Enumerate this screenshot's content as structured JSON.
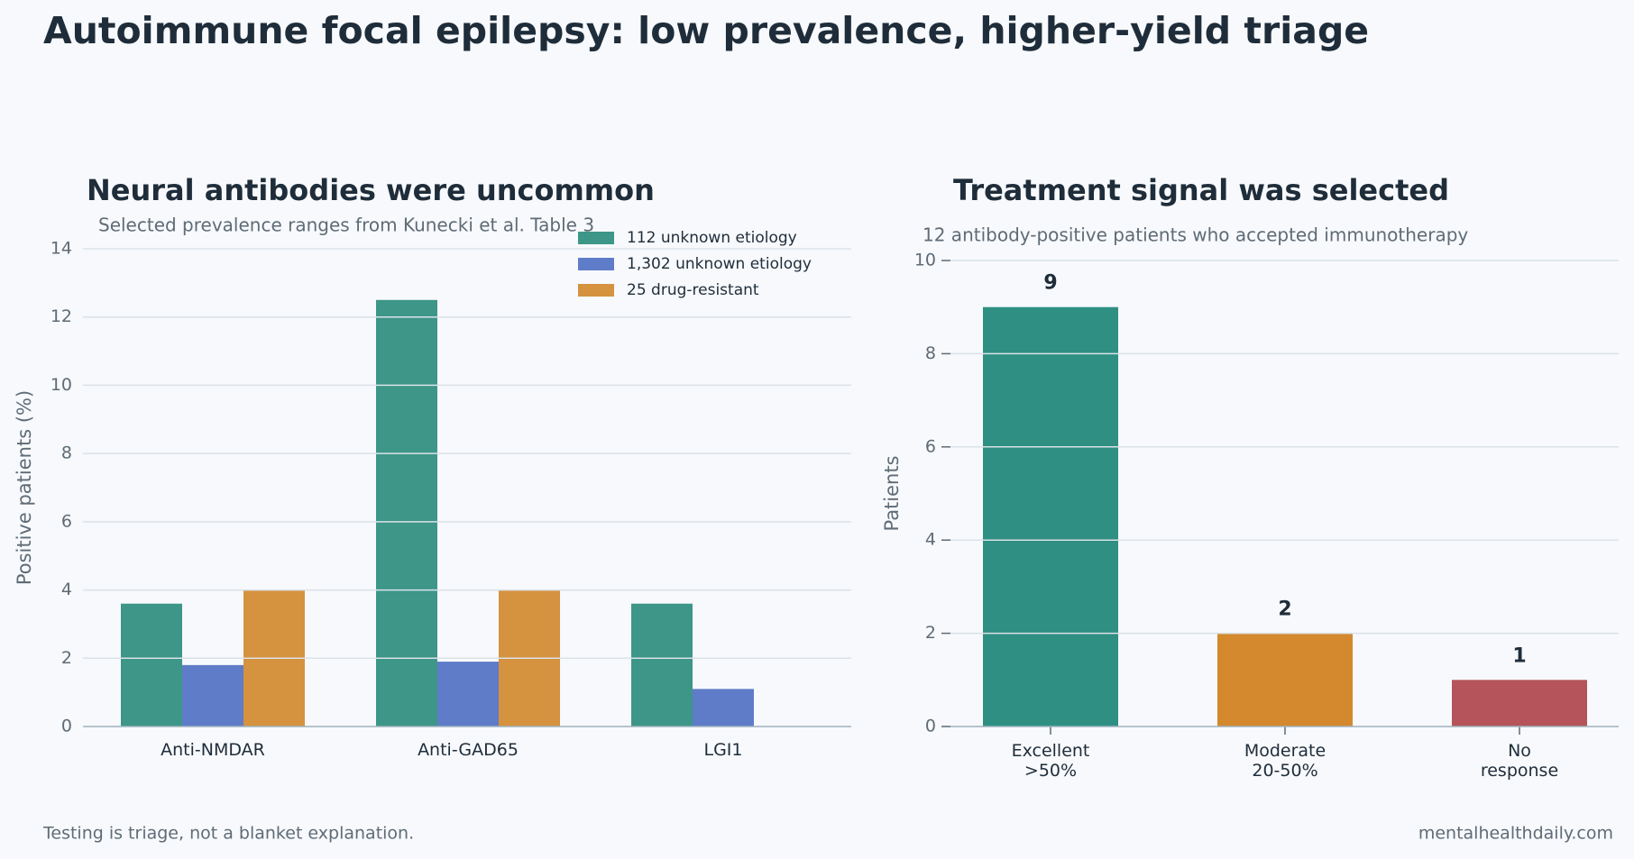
{
  "title": "Autoimmune focal epilepsy: low prevalence, higher-yield triage",
  "footer": {
    "left": "Testing is triage, not a blanket explanation.",
    "right": "mentalhealthdaily.com"
  },
  "chart_data": [
    {
      "type": "grouped_bar",
      "title": "Neural antibodies were uncommon",
      "subtitle": "Selected prevalence ranges from Kunecki et al. Table 3",
      "y_label": "Positive patients (%)",
      "categories": [
        "Anti-NMDAR",
        "Anti-GAD65",
        "LGI1"
      ],
      "series": [
        {
          "name": "112 unknown etiology",
          "color": "#3d9688",
          "values": [
            3.6,
            12.5,
            3.6
          ]
        },
        {
          "name": "1,302 unknown etiology",
          "color": "#5f7cc8",
          "values": [
            1.8,
            1.9,
            1.1
          ]
        },
        {
          "name": "25 drug-resistant",
          "color": "#d5923f",
          "values": [
            4.0,
            4.0,
            null
          ]
        }
      ],
      "ylim": [
        0,
        14
      ],
      "yticks": [
        0,
        2,
        4,
        6,
        8,
        10,
        12,
        14
      ],
      "grid": true,
      "legend": "upper right"
    },
    {
      "type": "bar",
      "title": "Treatment signal was selected",
      "subtitle": "12 antibody-positive patients who accepted immunotherapy",
      "y_label": "Patients",
      "categories": [
        "Excellent\n>50%",
        "Moderate\n20-50%",
        "No\nresponse"
      ],
      "values": [
        9,
        2,
        1
      ],
      "colors": [
        "#2e8f82",
        "#d4892f",
        "#b5545b"
      ],
      "ylim": [
        0,
        10
      ],
      "yticks": [
        0,
        2,
        4,
        6,
        8,
        10
      ],
      "grid": true
    }
  ]
}
